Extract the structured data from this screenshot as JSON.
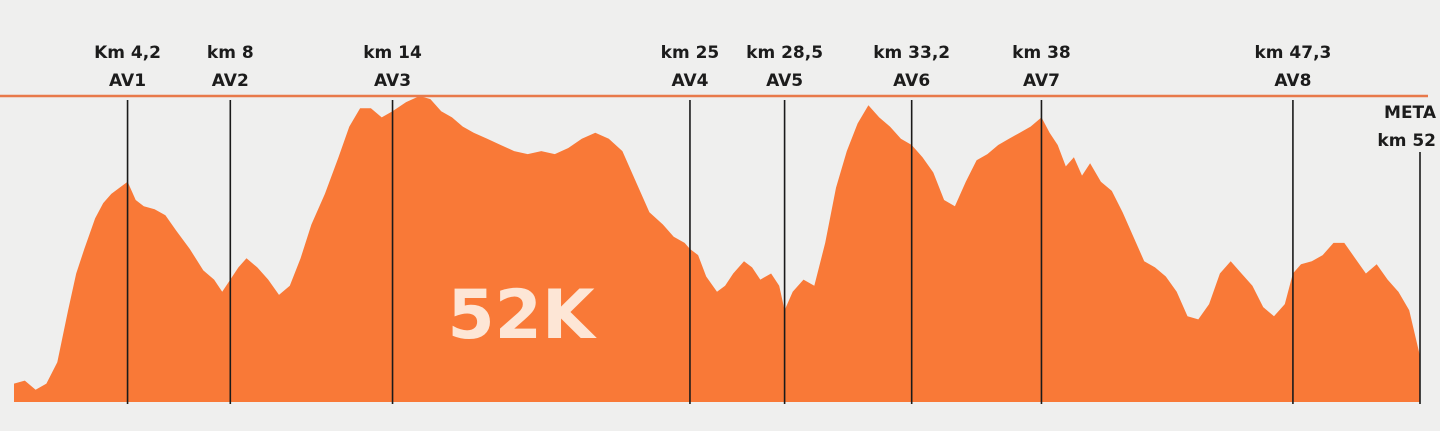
{
  "chart_data": {
    "type": "area",
    "title": "52K",
    "xlabel": "",
    "ylabel": "",
    "xlim": [
      0,
      52
    ],
    "ylim": [
      0,
      1
    ],
    "grid": false,
    "color": "#f97937",
    "reference_line_color": "#e8794a",
    "checkpoints": [
      {
        "km": 4.2,
        "line1": "Km 4,2",
        "line2": "AV1"
      },
      {
        "km": 8,
        "line1": "km 8",
        "line2": "AV2"
      },
      {
        "km": 14,
        "line1": "km 14",
        "line2": "AV3"
      },
      {
        "km": 25,
        "line1": "km 25",
        "line2": "AV4"
      },
      {
        "km": 28.5,
        "line1": "km 28,5",
        "line2": "AV5"
      },
      {
        "km": 33.2,
        "line1": "km 33,2",
        "line2": "AV6"
      },
      {
        "km": 38,
        "line1": "km 38",
        "line2": "AV7"
      },
      {
        "km": 47.3,
        "line1": "km 47,3",
        "line2": "AV8"
      }
    ],
    "finish": {
      "km": 52,
      "line1": "META",
      "line2": "km 52"
    },
    "profile": {
      "note": "relative elevation (0 = lowest, 1 = highest); no elevation axis printed",
      "x": [
        0,
        0.4,
        0.8,
        1.2,
        1.6,
        2.0,
        2.3,
        2.6,
        3.0,
        3.3,
        3.6,
        3.9,
        4.2,
        4.5,
        4.8,
        5.2,
        5.6,
        6.0,
        6.5,
        7.0,
        7.4,
        7.7,
        8.0,
        8.3,
        8.6,
        9.0,
        9.4,
        9.8,
        10.2,
        10.6,
        11.0,
        11.5,
        12.0,
        12.4,
        12.8,
        13.2,
        13.6,
        14.0,
        14.5,
        15.0,
        15.4,
        15.8,
        16.2,
        16.6,
        17.0,
        17.5,
        18.0,
        18.5,
        19.0,
        19.5,
        20.0,
        20.5,
        21.0,
        21.5,
        22.0,
        22.5,
        23.0,
        23.5,
        24.0,
        24.4,
        24.8,
        25.0,
        25.3,
        25.6,
        26.0,
        26.3,
        26.6,
        27.0,
        27.3,
        27.6,
        28.0,
        28.3,
        28.5,
        28.8,
        29.2,
        29.6,
        30.0,
        30.4,
        30.8,
        31.2,
        31.6,
        32.0,
        32.4,
        32.8,
        33.2,
        33.6,
        34.0,
        34.4,
        34.8,
        35.2,
        35.6,
        36.0,
        36.4,
        36.8,
        37.2,
        37.6,
        38.0,
        38.3,
        38.6,
        38.9,
        39.2,
        39.5,
        39.8,
        40.2,
        40.6,
        41.0,
        41.4,
        41.8,
        42.2,
        42.6,
        43.0,
        43.4,
        43.8,
        44.2,
        44.6,
        45.0,
        45.4,
        45.8,
        46.2,
        46.6,
        47.0,
        47.3,
        47.6,
        48.0,
        48.4,
        48.8,
        49.2,
        49.6,
        50.0,
        50.4,
        50.8,
        51.2,
        51.6,
        52.0
      ],
      "y": [
        0.06,
        0.07,
        0.04,
        0.06,
        0.13,
        0.3,
        0.42,
        0.5,
        0.6,
        0.65,
        0.68,
        0.7,
        0.72,
        0.66,
        0.64,
        0.63,
        0.61,
        0.56,
        0.5,
        0.43,
        0.4,
        0.36,
        0.4,
        0.44,
        0.47,
        0.44,
        0.4,
        0.35,
        0.38,
        0.47,
        0.58,
        0.68,
        0.8,
        0.9,
        0.96,
        0.96,
        0.93,
        0.95,
        0.98,
        1.0,
        0.99,
        0.95,
        0.93,
        0.9,
        0.88,
        0.86,
        0.84,
        0.82,
        0.81,
        0.82,
        0.81,
        0.83,
        0.86,
        0.88,
        0.86,
        0.82,
        0.72,
        0.62,
        0.58,
        0.54,
        0.52,
        0.5,
        0.48,
        0.41,
        0.36,
        0.38,
        0.42,
        0.46,
        0.44,
        0.4,
        0.42,
        0.38,
        0.3,
        0.36,
        0.4,
        0.38,
        0.52,
        0.7,
        0.82,
        0.91,
        0.97,
        0.93,
        0.9,
        0.86,
        0.84,
        0.8,
        0.75,
        0.66,
        0.64,
        0.72,
        0.79,
        0.81,
        0.84,
        0.86,
        0.88,
        0.9,
        0.93,
        0.88,
        0.84,
        0.77,
        0.8,
        0.74,
        0.78,
        0.72,
        0.69,
        0.62,
        0.54,
        0.46,
        0.44,
        0.41,
        0.36,
        0.28,
        0.27,
        0.32,
        0.42,
        0.46,
        0.42,
        0.38,
        0.31,
        0.28,
        0.32,
        0.42,
        0.45,
        0.46,
        0.48,
        0.52,
        0.52,
        0.47,
        0.42,
        0.45,
        0.4,
        0.36,
        0.3,
        0.15
      ]
    }
  }
}
